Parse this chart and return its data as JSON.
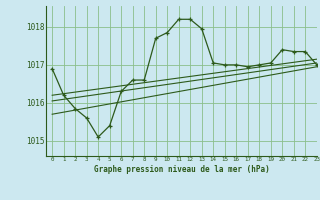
{
  "title": "Graphe pression niveau de la mer (hPa)",
  "bg_color": "#cce8f0",
  "line_color": "#2d5a1b",
  "grid_color": "#8bbf8b",
  "xlim": [
    -0.5,
    23
  ],
  "ylim": [
    1014.6,
    1018.55
  ],
  "yticks": [
    1015,
    1016,
    1017,
    1018
  ],
  "xticks": [
    0,
    1,
    2,
    3,
    4,
    5,
    6,
    7,
    8,
    9,
    10,
    11,
    12,
    13,
    14,
    15,
    16,
    17,
    18,
    19,
    20,
    21,
    22,
    23
  ],
  "main_x": [
    0,
    1,
    2,
    3,
    4,
    5,
    6,
    7,
    8,
    9,
    10,
    11,
    12,
    13,
    14,
    15,
    16,
    17,
    18,
    19,
    20,
    21,
    22,
    23
  ],
  "main_y": [
    1016.9,
    1016.2,
    1015.85,
    1015.6,
    1015.1,
    1015.4,
    1016.3,
    1016.6,
    1016.6,
    1017.7,
    1017.85,
    1018.2,
    1018.2,
    1017.95,
    1017.05,
    1017.0,
    1017.0,
    1016.95,
    1017.0,
    1017.05,
    1017.4,
    1017.35,
    1017.35,
    1017.0
  ],
  "trend1_x": [
    0,
    23
  ],
  "trend1_y": [
    1015.7,
    1016.95
  ],
  "trend2_x": [
    0,
    23
  ],
  "trend2_y": [
    1016.05,
    1017.05
  ],
  "trend3_x": [
    0,
    23
  ],
  "trend3_y": [
    1016.2,
    1017.15
  ]
}
